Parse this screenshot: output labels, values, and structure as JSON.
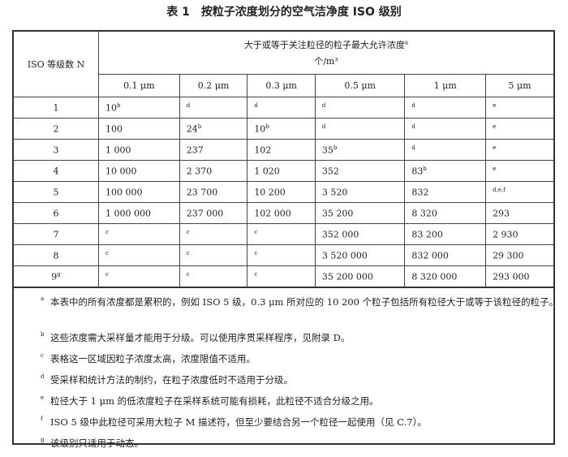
{
  "title": "表 1　按粒子浓度划分的空气洁净度 ISO 级别",
  "table": {
    "row_header": "ISO 等级数 N",
    "group_header": "大于或等于关注粒径的粒子最大允许浓度",
    "group_header_note": "a",
    "unit": "个/m³",
    "columns": [
      "0.1 μm",
      "0.2 μm",
      "0.3 μm",
      "0.5 μm",
      "1 μm",
      "5 μm"
    ],
    "rows": [
      {
        "n": "1",
        "nsup": "",
        "cells": [
          [
            "10",
            "b"
          ],
          [
            "",
            "d"
          ],
          [
            "",
            "d"
          ],
          [
            "",
            "d"
          ],
          [
            "",
            "d"
          ],
          [
            "",
            "e"
          ]
        ]
      },
      {
        "n": "2",
        "nsup": "",
        "cells": [
          [
            "100",
            ""
          ],
          [
            "24",
            "b"
          ],
          [
            "10",
            "b"
          ],
          [
            "",
            "d"
          ],
          [
            "",
            "d"
          ],
          [
            "",
            "e"
          ]
        ]
      },
      {
        "n": "3",
        "nsup": "",
        "cells": [
          [
            "1 000",
            ""
          ],
          [
            "237",
            ""
          ],
          [
            "102",
            ""
          ],
          [
            "35",
            "b"
          ],
          [
            "",
            "d"
          ],
          [
            "",
            "e"
          ]
        ]
      },
      {
        "n": "4",
        "nsup": "",
        "cells": [
          [
            "10 000",
            ""
          ],
          [
            "2 370",
            ""
          ],
          [
            "1 020",
            ""
          ],
          [
            "352",
            ""
          ],
          [
            "83",
            "b"
          ],
          [
            "",
            "e"
          ]
        ]
      },
      {
        "n": "5",
        "nsup": "",
        "cells": [
          [
            "100 000",
            ""
          ],
          [
            "23 700",
            ""
          ],
          [
            "10 200",
            ""
          ],
          [
            "3 520",
            ""
          ],
          [
            "832",
            ""
          ],
          [
            "",
            "d,e,f"
          ]
        ]
      },
      {
        "n": "6",
        "nsup": "",
        "cells": [
          [
            "1 000 000",
            ""
          ],
          [
            "237 000",
            ""
          ],
          [
            "102 000",
            ""
          ],
          [
            "35 200",
            ""
          ],
          [
            "8 320",
            ""
          ],
          [
            "293",
            ""
          ]
        ]
      },
      {
        "n": "7",
        "nsup": "",
        "cells": [
          [
            "",
            "c"
          ],
          [
            "",
            "c"
          ],
          [
            "",
            "c"
          ],
          [
            "352 000",
            ""
          ],
          [
            "83 200",
            ""
          ],
          [
            "2 930",
            ""
          ]
        ]
      },
      {
        "n": "8",
        "nsup": "",
        "cells": [
          [
            "",
            "c"
          ],
          [
            "",
            "c"
          ],
          [
            "",
            "c"
          ],
          [
            "3 520 000",
            ""
          ],
          [
            "832 000",
            ""
          ],
          [
            "29 300",
            ""
          ]
        ]
      },
      {
        "n": "9",
        "nsup": "g",
        "cells": [
          [
            "",
            "c"
          ],
          [
            "",
            "c"
          ],
          [
            "",
            "c"
          ],
          [
            "35 200 000",
            ""
          ],
          [
            "8 320 000",
            ""
          ],
          [
            "293 000",
            ""
          ]
        ]
      }
    ]
  },
  "notes": [
    {
      "mark": "a",
      "text": "本表中的所有浓度都是累积的，例如 ISO 5 级，0.3 μm 所对应的 10 200 个粒子包括所有粒径大于或等于该粒径的粒子。"
    },
    {
      "mark": "b",
      "text": "这些浓度需大采样量才能用于分级。可以使用序贯采样程序，见附录 D。"
    },
    {
      "mark": "c",
      "text": "表格这一区域因粒子浓度太高，浓度限值不适用。"
    },
    {
      "mark": "d",
      "text": "受采样和统计方法的制约，在粒子浓度低时不适用于分级。"
    },
    {
      "mark": "e",
      "text": "粒径大于 1 μm 的低浓度粒子在采样系统可能有损耗，此粒径不适合分级之用。"
    },
    {
      "mark": "f",
      "text": "ISO 5 级中此粒径可采用大粒子 M 描述符，但至少要结合另一个粒径一起使用（见 C.7）。"
    },
    {
      "mark": "g",
      "text": "该级别只适用于动态。"
    }
  ]
}
